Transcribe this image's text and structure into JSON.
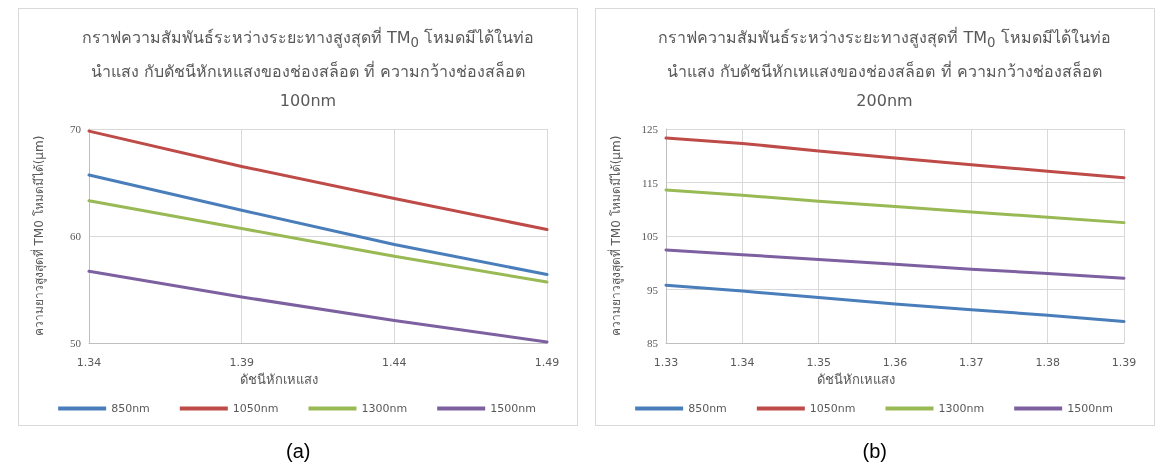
{
  "chart_data": [
    {
      "type": "line",
      "title": "กราฟความสัมพันธ์ระหว่างระยะทางสูงสุดที่ TM$_{0}$ โหมดมีได้ในท่อนำแสง กับดัชนีหักเหแสงของช่องสล็อต ที่ ความกว้างช่องสล็อต 100nm",
      "xlabel": "ดัชนีหักเหแสง",
      "ylabel": "ความยาวสูงสุดที่ TM0 โหมดมีได้(µm)",
      "x": [
        1.34,
        1.39,
        1.44,
        1.49
      ],
      "xlim": [
        1.34,
        1.49
      ],
      "xticks": [
        1.34,
        1.39,
        1.44,
        1.49
      ],
      "ylim": [
        50,
        70
      ],
      "yticks": [
        50,
        60,
        70
      ],
      "grid": true,
      "legend": "bottom",
      "marker": "none",
      "line_style": "solid",
      "annotations": [
        "(a)"
      ],
      "series": [
        {
          "name": "850nm",
          "color": "#4a7ebb",
          "values": [
            65.7,
            62.4,
            59.2,
            56.4
          ]
        },
        {
          "name": "1050nm",
          "color": "#be4b48",
          "values": [
            69.8,
            66.5,
            63.5,
            60.6
          ]
        },
        {
          "name": "1300nm",
          "color": "#98b954",
          "values": [
            63.3,
            60.7,
            58.1,
            55.7
          ]
        },
        {
          "name": "1500nm",
          "color": "#7d60a0",
          "values": [
            56.7,
            54.3,
            52.1,
            50.1
          ]
        }
      ]
    },
    {
      "type": "line",
      "title": "กราฟความสัมพันธ์ระหว่างระยะทางสูงสุดที่ TM$_{0}$ โหมดมีได้ในท่อนำแสง กับดัชนีหักเหแสงของช่องสล็อต ที่ ความกว้างช่องสล็อต 200nm",
      "xlabel": "ดัชนีหักเหแสง",
      "ylabel": "ความยาวสูงสุดที่ TM0 โหมดมีได้(µm)",
      "x": [
        1.33,
        1.34,
        1.35,
        1.36,
        1.37,
        1.38,
        1.39
      ],
      "xlim": [
        1.33,
        1.39
      ],
      "xticks": [
        1.33,
        1.34,
        1.35,
        1.36,
        1.37,
        1.38,
        1.39
      ],
      "ylim": [
        85,
        125
      ],
      "yticks": [
        85,
        95,
        105,
        115,
        125
      ],
      "grid": true,
      "legend": "bottom",
      "marker": "none",
      "line_style": "solid",
      "annotations": [
        "(b)"
      ],
      "series": [
        {
          "name": "850nm",
          "color": "#4a7ebb",
          "values": [
            95.8,
            94.7,
            93.5,
            92.3,
            91.2,
            90.2,
            89.0
          ]
        },
        {
          "name": "1050nm",
          "color": "#be4b48",
          "values": [
            123.3,
            122.3,
            120.9,
            119.6,
            118.3,
            117.1,
            115.9
          ]
        },
        {
          "name": "1300nm",
          "color": "#98b954",
          "values": [
            113.6,
            112.6,
            111.5,
            110.5,
            109.5,
            108.5,
            107.5
          ]
        },
        {
          "name": "1500nm",
          "color": "#7d60a0",
          "values": [
            102.4,
            101.5,
            100.6,
            99.7,
            98.8,
            98.0,
            97.1
          ]
        }
      ]
    }
  ]
}
